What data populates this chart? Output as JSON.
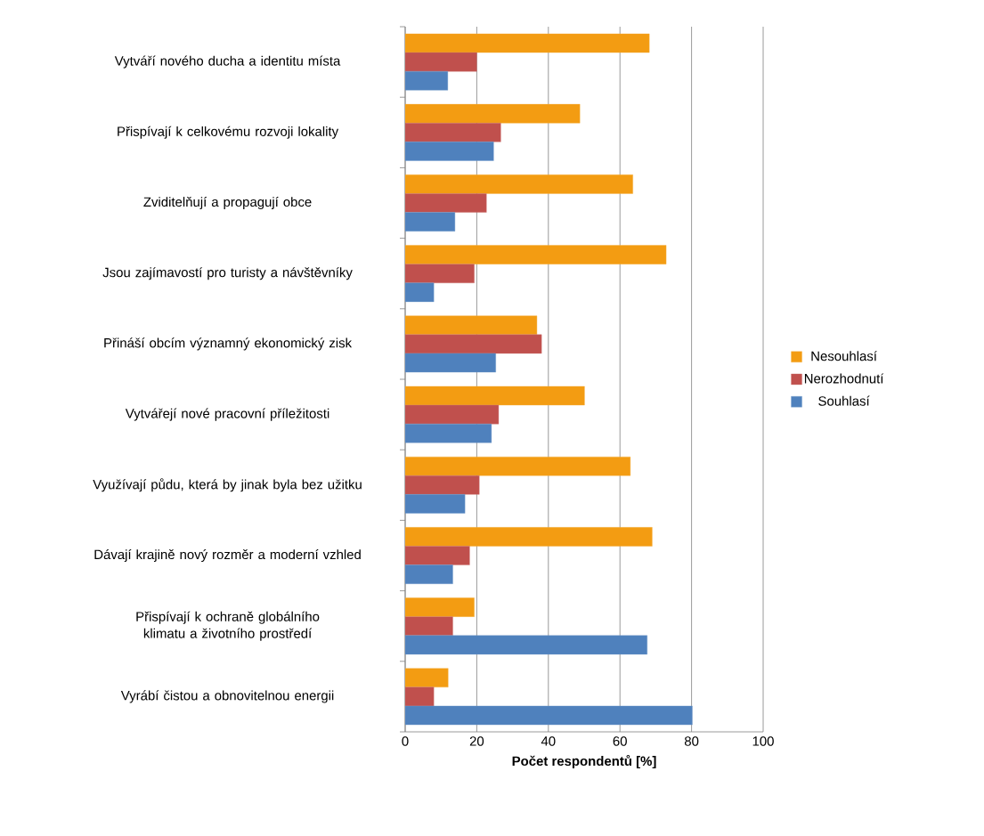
{
  "chart_data": {
    "type": "bar",
    "orientation": "horizontal",
    "xlabel": "Počet respondentů [%]",
    "categories": [
      "Vytváří nového ducha a identitu místa",
      "Přispívají k celkovému rozvoji lokality",
      "Zviditelňují a propagují obce",
      "Jsou zajímavostí pro turisty a návštěvníky",
      "Přináší obcím významný ekonomický zisk",
      "Vytvářejí nové pracovní příležitosti",
      "Využívají půdu, která by jinak byla bez užitku",
      "Dávají krajině nový rozměr a moderní vzhled",
      "Přispívají k ochraně globálního klimatu a životního prostředí",
      "Vyrábí čistou a obnovitelnou energii"
    ],
    "series": [
      {
        "name": "Nesouhlasí",
        "color": "#f39c12",
        "values": [
          68.2,
          48.8,
          63.6,
          72.9,
          36.8,
          50.1,
          62.9,
          69.0,
          19.3,
          12.0
        ]
      },
      {
        "name": "Nerozhodnutí",
        "color": "#c0504d",
        "values": [
          20.0,
          26.7,
          22.7,
          19.3,
          38.1,
          26.1,
          20.7,
          18.0,
          13.3,
          8.0
        ]
      },
      {
        "name": "Souhlasí",
        "color": "#4f81bd",
        "values": [
          11.9,
          24.7,
          13.9,
          8.0,
          25.3,
          24.1,
          16.7,
          13.3,
          67.6,
          80.2
        ]
      }
    ],
    "xlim": [
      0,
      100
    ],
    "xticks": [
      0,
      20,
      40,
      60,
      80,
      100
    ],
    "grid": "x",
    "legend": "right"
  }
}
